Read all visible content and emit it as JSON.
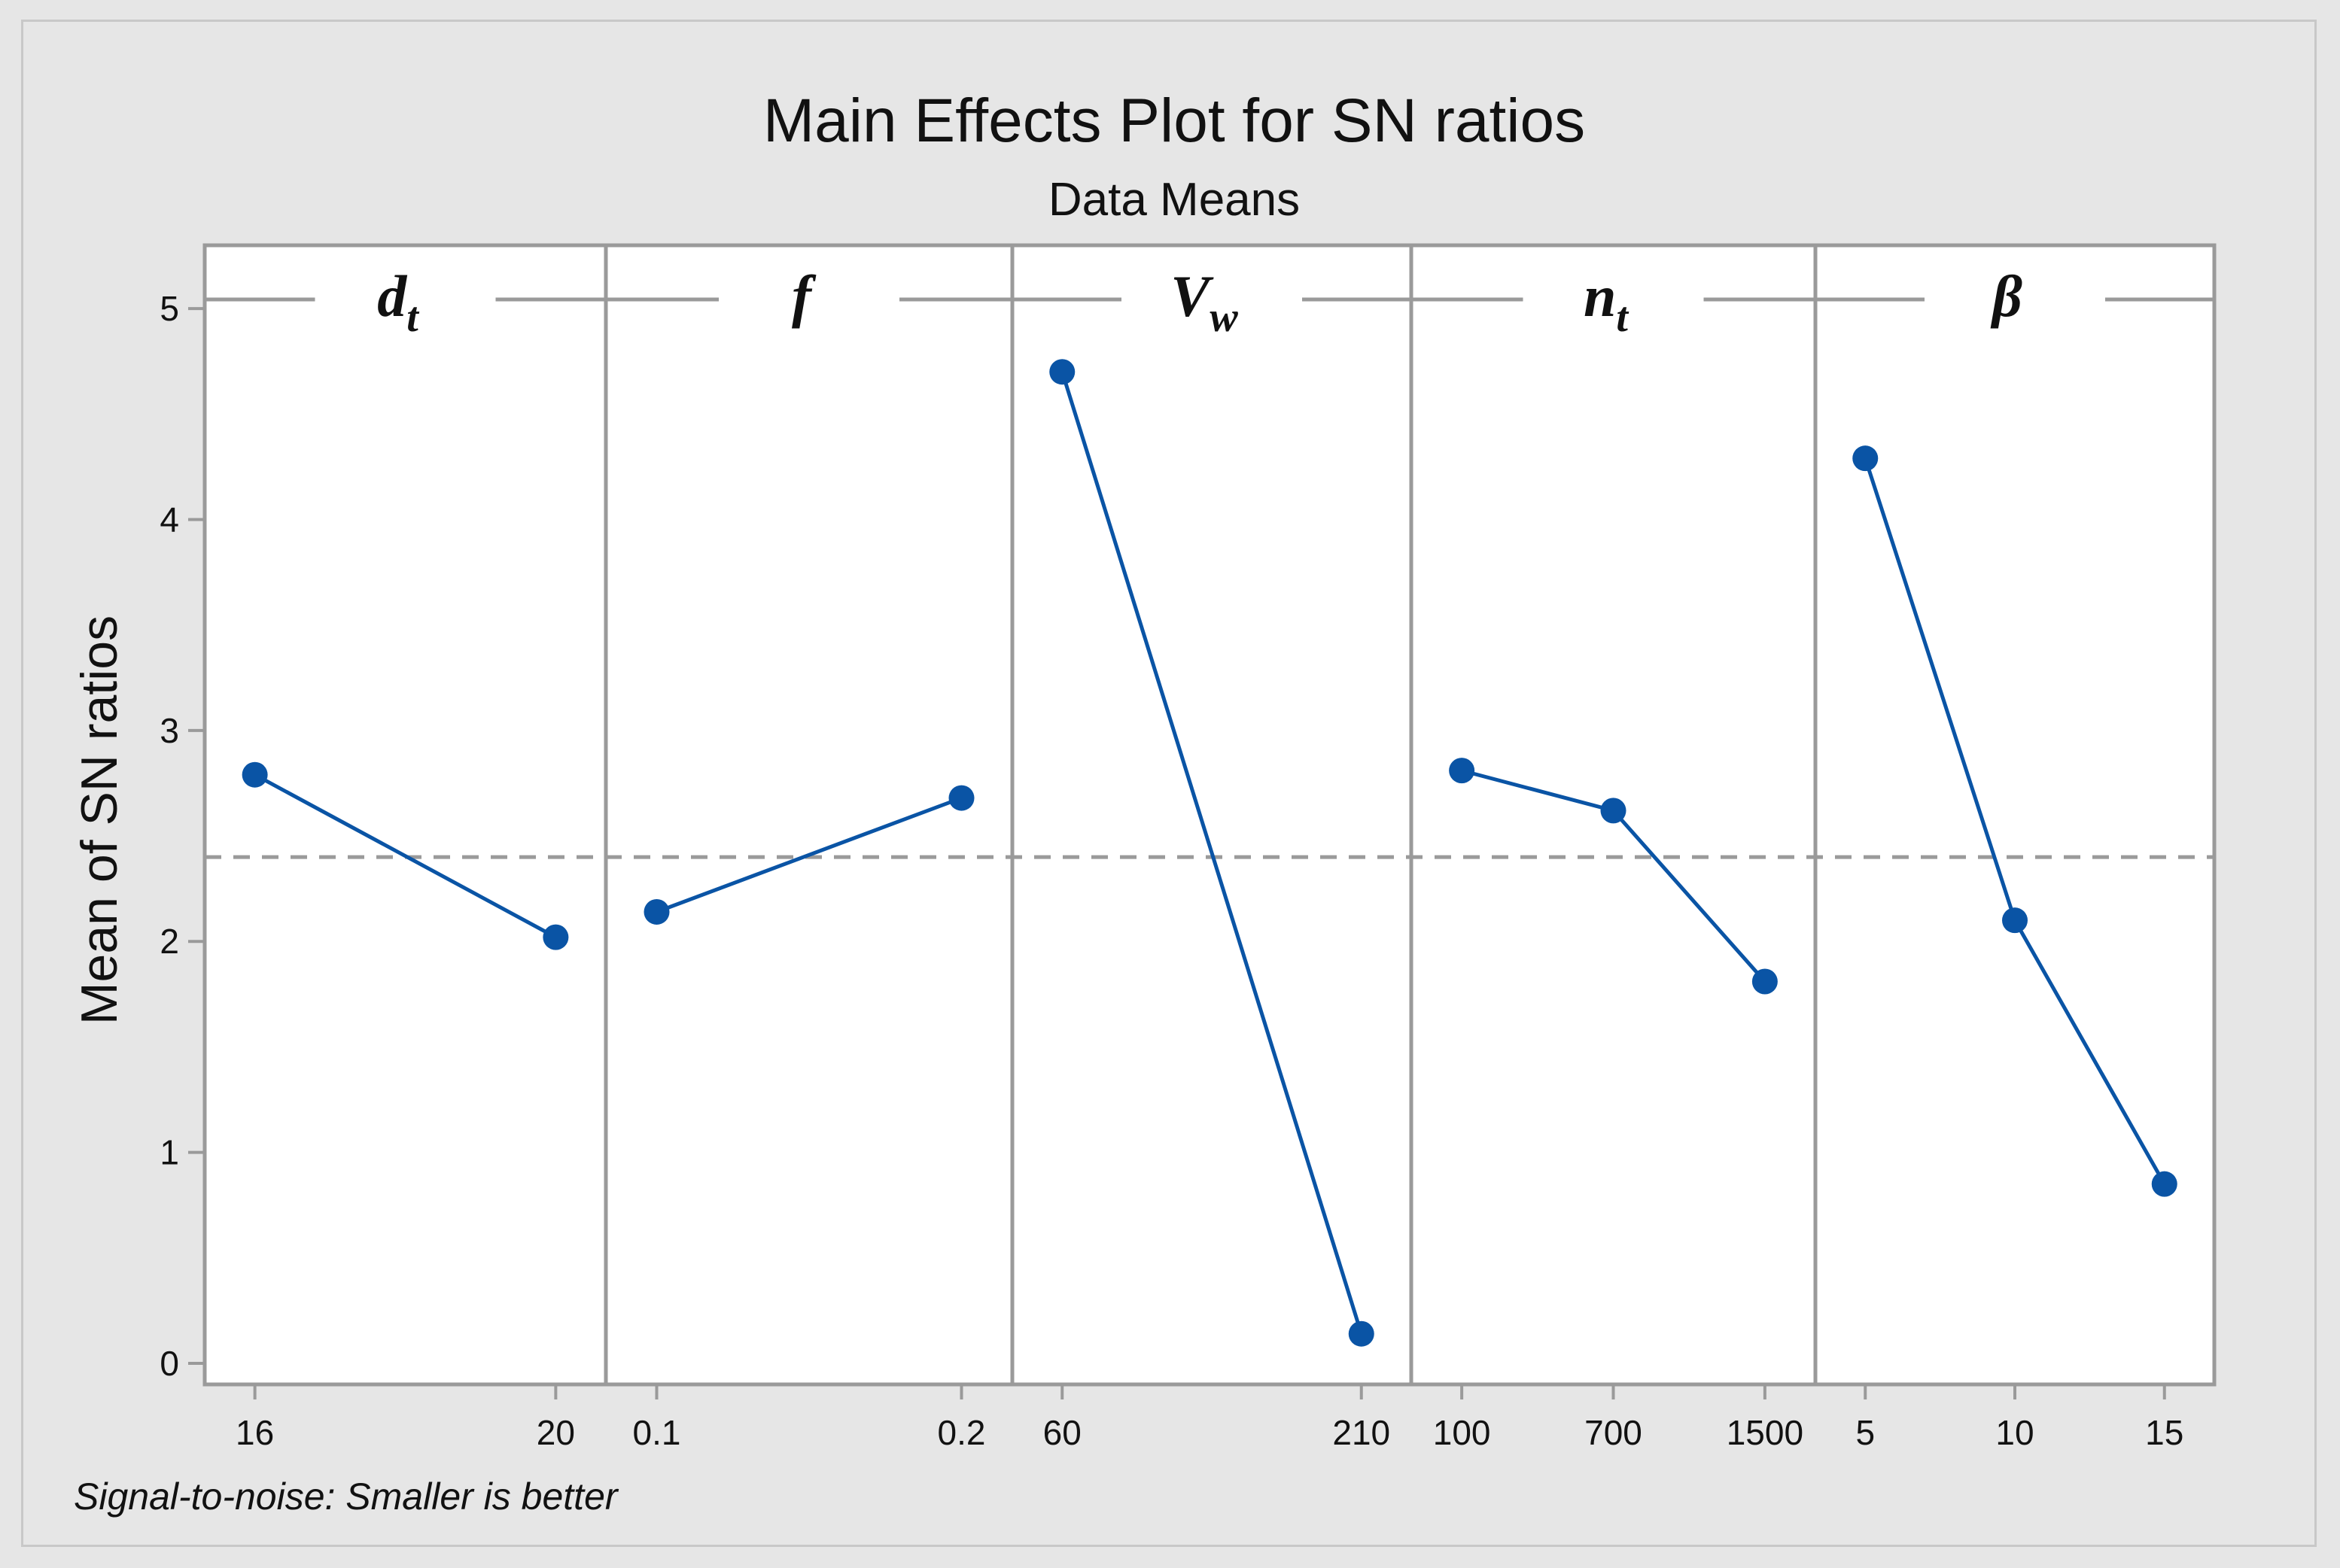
{
  "chart_data": {
    "type": "line",
    "title": "Main Effects Plot for SN ratios",
    "subtitle": "Data Means",
    "ylabel": "Mean of SN ratios",
    "footnote": "Signal-to-noise: Smaller is better",
    "ylim": [
      -0.1,
      5.3
    ],
    "yticks": [
      0,
      1,
      2,
      3,
      4,
      5
    ],
    "reference_mean": 2.4,
    "colors": {
      "series": "#0a54a5",
      "reference": "#9a9a9a",
      "frame": "#9a9a9a",
      "plot_bg": "#ffffff"
    },
    "panels": [
      {
        "name": "d",
        "subscript": "t",
        "categories": [
          "16",
          "20"
        ],
        "values": [
          2.79,
          2.02
        ]
      },
      {
        "name": "f",
        "subscript": "",
        "categories": [
          "0.1",
          "0.2"
        ],
        "values": [
          2.14,
          2.68
        ]
      },
      {
        "name": "V",
        "subscript": "w",
        "categories": [
          "60",
          "210"
        ],
        "values": [
          4.7,
          0.14
        ]
      },
      {
        "name": "n",
        "subscript": "t",
        "categories": [
          "100",
          "700",
          "1500"
        ],
        "values": [
          2.81,
          2.62,
          1.81
        ]
      },
      {
        "name": "β",
        "subscript": "",
        "categories": [
          "5",
          "10",
          "15"
        ],
        "values": [
          4.29,
          2.1,
          0.85
        ]
      }
    ]
  }
}
